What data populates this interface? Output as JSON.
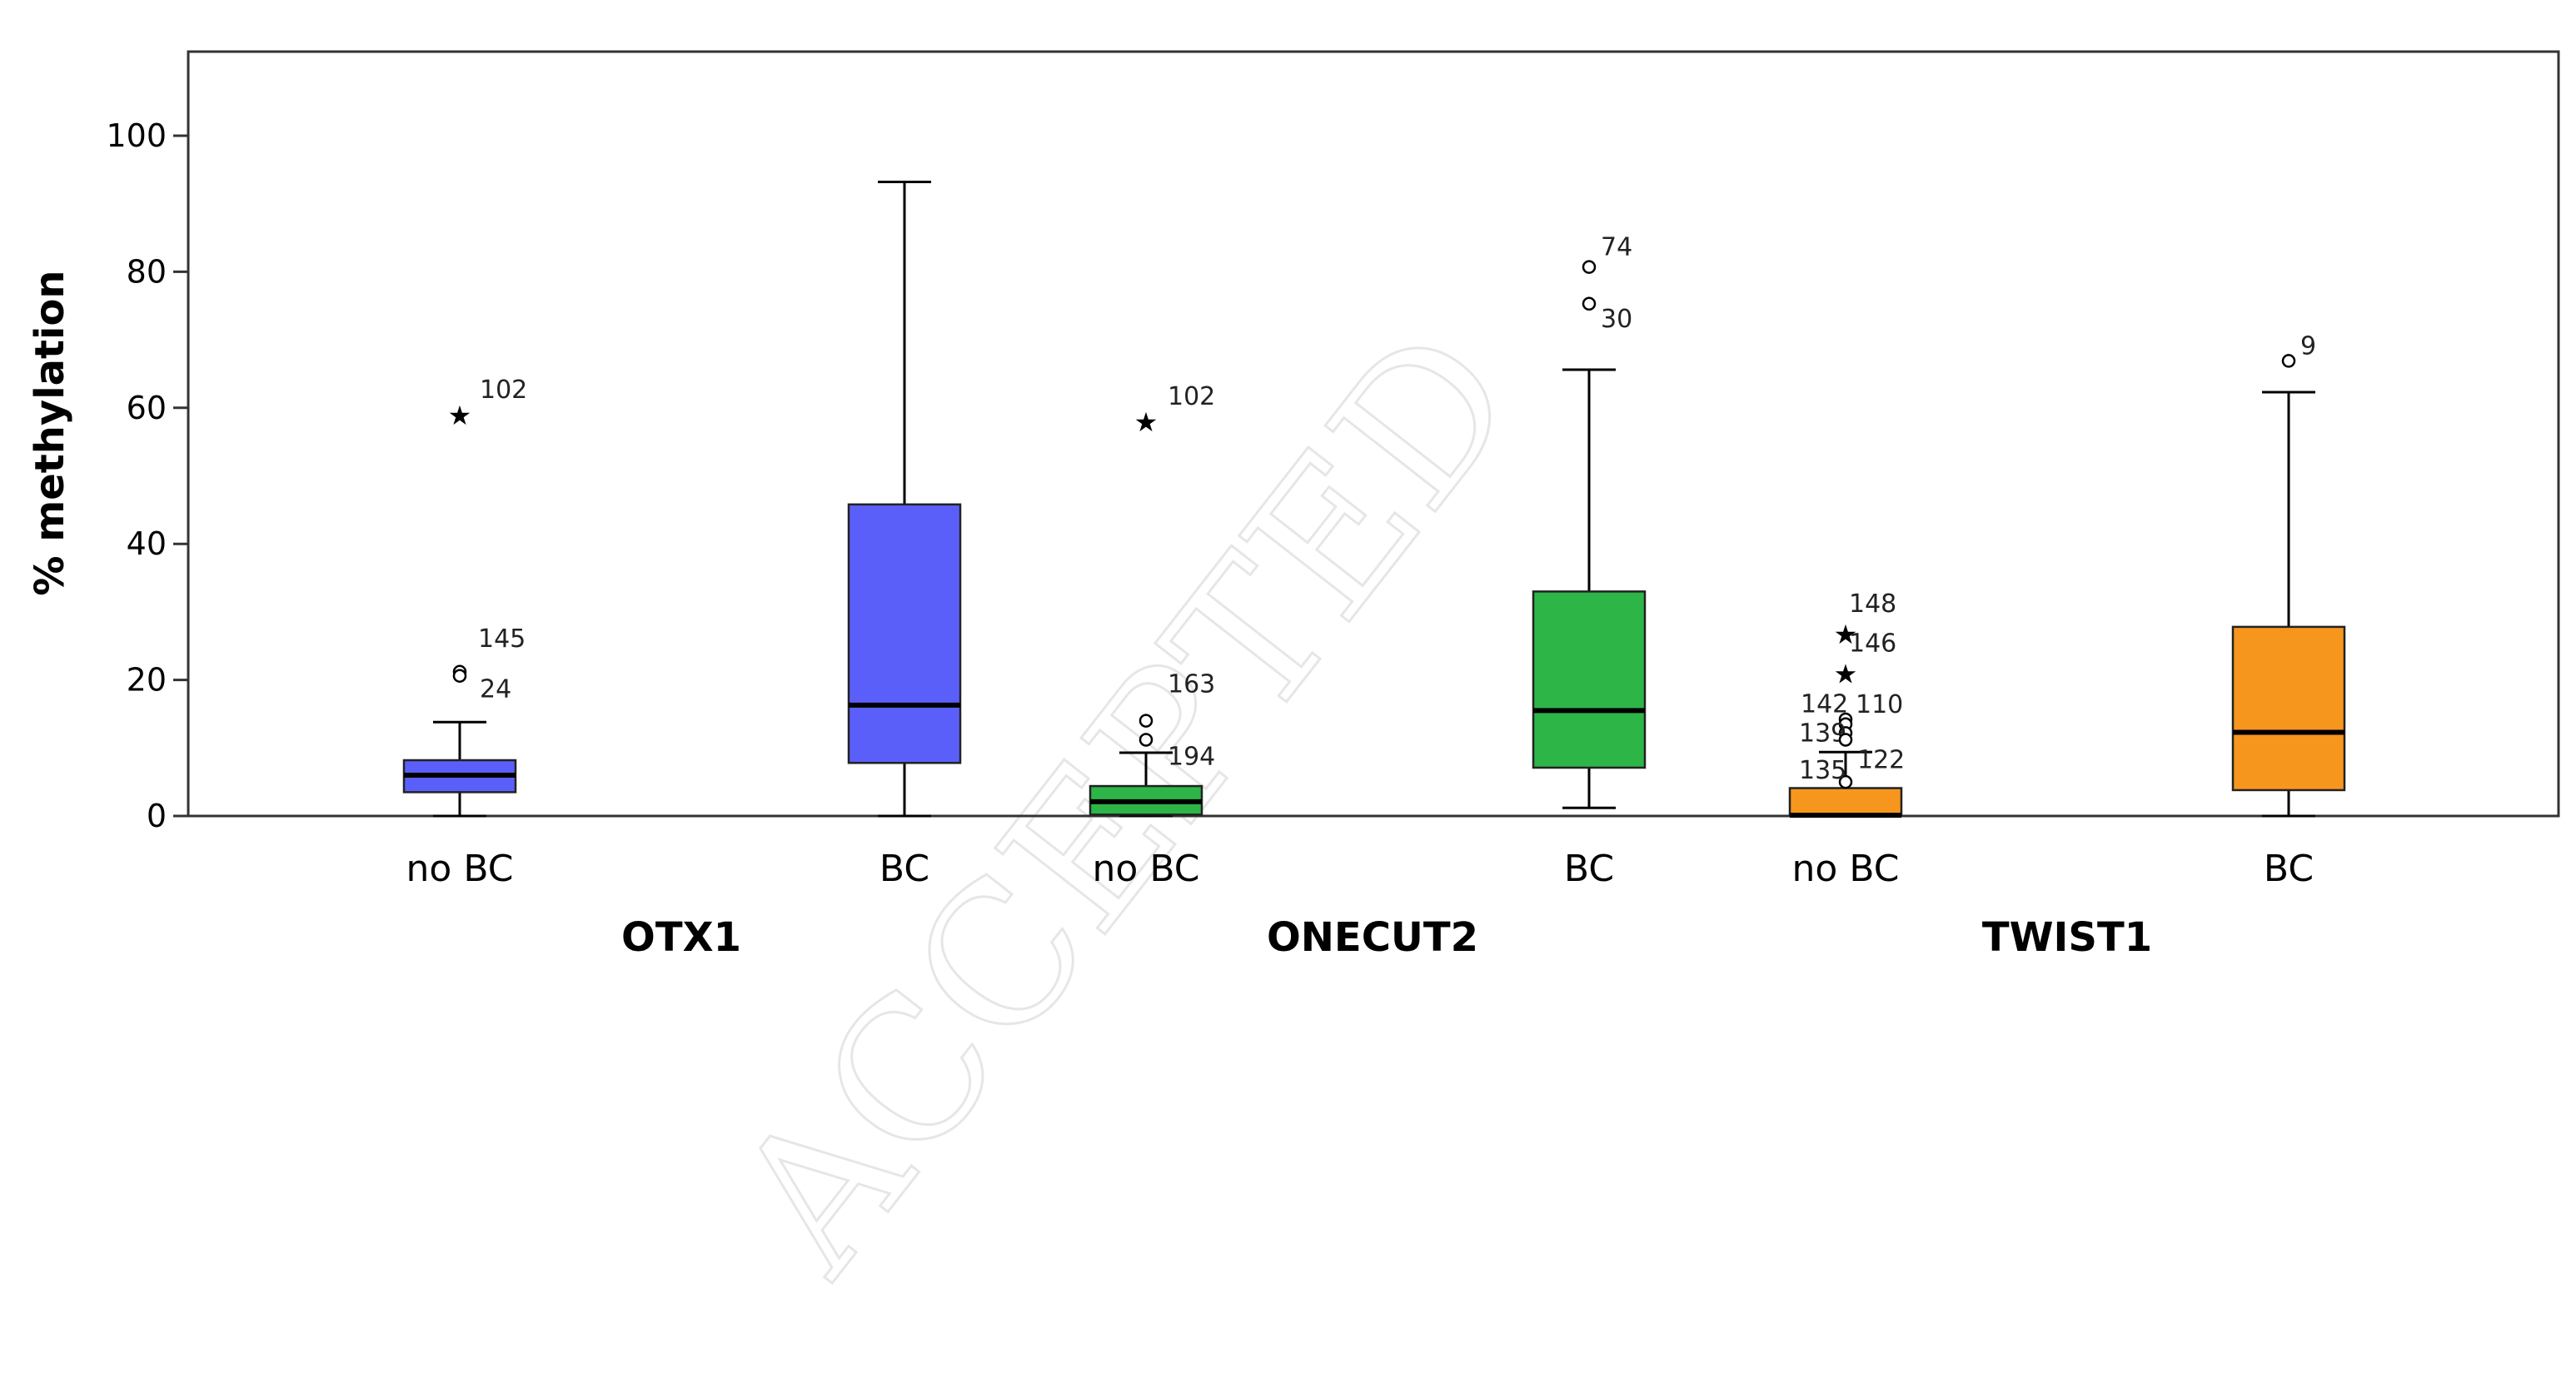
{
  "watermark": "ACCEPTED",
  "chart_data": {
    "type": "box",
    "ylabel": "% methylation",
    "ylim": [
      0,
      110
    ],
    "yticks": [
      0,
      20,
      40,
      60,
      80,
      100
    ],
    "grid": false,
    "groups": [
      {
        "name": "OTX1",
        "boxes": [
          {
            "category": "no BC",
            "color": "#5b5ffa",
            "min": 0,
            "q1": 3.5,
            "median": 6,
            "q3": 8.2,
            "max": 13.8,
            "outliers": [
              {
                "value": 59,
                "label": "102",
                "marker": "star"
              },
              {
                "value": 21.2,
                "label": "145",
                "marker": "circle"
              },
              {
                "value": 20.6,
                "label": "24",
                "marker": "circle"
              }
            ]
          },
          {
            "category": "BC",
            "color": "#5b5ffa",
            "min": 0,
            "q1": 7.8,
            "median": 16.3,
            "q3": 45.8,
            "max": 93.2,
            "outliers": []
          }
        ]
      },
      {
        "name": "ONECUT2",
        "boxes": [
          {
            "category": "no BC",
            "color": "#2db548",
            "min": 0,
            "q1": 0.2,
            "median": 2.1,
            "q3": 4.4,
            "max": 9.3,
            "outliers": [
              {
                "value": 58,
                "label": "102",
                "marker": "star"
              },
              {
                "value": 14,
                "label": "163",
                "marker": "circle"
              },
              {
                "value": 11.2,
                "label": "194",
                "marker": "circle"
              }
            ]
          },
          {
            "category": "BC",
            "color": "#2db548",
            "min": 1.2,
            "q1": 7.1,
            "median": 15.5,
            "q3": 33,
            "max": 65.6,
            "outliers": [
              {
                "value": 80.7,
                "label": "74",
                "marker": "circle"
              },
              {
                "value": 75.3,
                "label": "30",
                "marker": "circle"
              }
            ]
          }
        ]
      },
      {
        "name": "TWIST1",
        "boxes": [
          {
            "category": "no BC",
            "color": "#f7961d",
            "min": 0,
            "q1": 0,
            "median": 0.1,
            "q3": 4.1,
            "max": 9.4,
            "outliers": [
              {
                "value": 26.8,
                "label": "148",
                "marker": "star"
              },
              {
                "value": 21,
                "label": "146",
                "marker": "star"
              },
              {
                "value": 14.2,
                "label": "110",
                "marker": "circle"
              },
              {
                "value": 13.5,
                "label": "142",
                "marker": "circle"
              },
              {
                "value": 12.2,
                "label": "139",
                "marker": "circle"
              },
              {
                "value": 11.2,
                "label": "122",
                "marker": "circle"
              },
              {
                "value": 5,
                "label": "135",
                "marker": "circle"
              }
            ]
          },
          {
            "category": "BC",
            "color": "#f7961d",
            "min": 0,
            "q1": 3.8,
            "median": 12.3,
            "q3": 27.8,
            "max": 62.3,
            "outliers": [
              {
                "value": 66.9,
                "label": "9",
                "marker": "circle"
              }
            ]
          }
        ]
      }
    ]
  }
}
